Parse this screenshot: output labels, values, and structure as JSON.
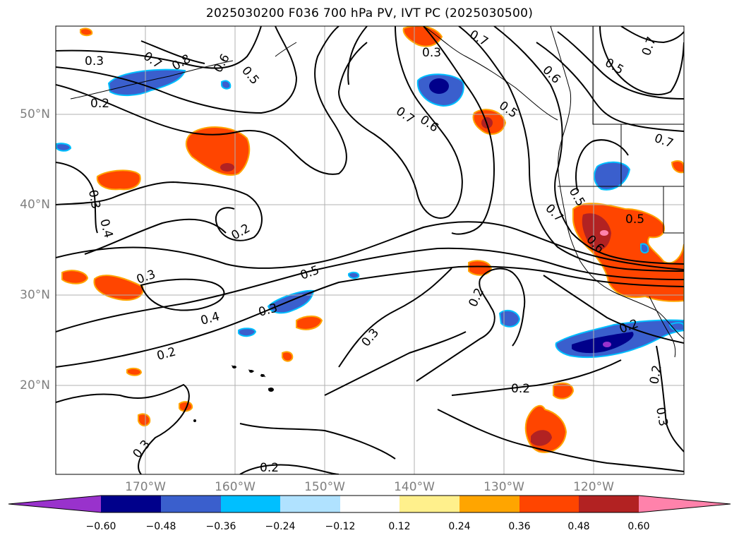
{
  "title": "2025030200 F036 700 hPa PV, IVT PC (2025030500)",
  "lat_labels": [
    "50°N",
    "40°N",
    "30°N",
    "20°N"
  ],
  "lon_labels": [
    "170°W",
    "160°W",
    "150°W",
    "140°W",
    "130°W",
    "120°W"
  ],
  "colorbar": {
    "ticks": [
      "−0.60",
      "−0.48",
      "−0.36",
      "−0.24",
      "−0.12",
      "0.12",
      "0.24",
      "0.36",
      "0.48",
      "0.60"
    ],
    "colors": [
      "#9932cc",
      "#00008b",
      "#3a5fcd",
      "#00bfff",
      "#b0e2ff",
      "#ffffff",
      "#fff08c",
      "#ffa500",
      "#ff4500",
      "#b22222",
      "#ff82ab"
    ]
  },
  "contour_labels": [
    "0.3",
    "0.2",
    "0.7",
    "0.8",
    "0.6",
    "0.5",
    "0.3",
    "0.7",
    "0.6",
    "0.5",
    "0.7",
    "0.5",
    "0.7",
    "0.6",
    "0.7",
    "0.3",
    "0.4",
    "0.2",
    "0.3",
    "0.5",
    "0.4",
    "0.3",
    "0.2",
    "0.3",
    "0.5",
    "0.7",
    "0.6",
    "0.5",
    "0.2",
    "0.2",
    "0.2",
    "0.3",
    "0.3",
    "0.2"
  ]
}
